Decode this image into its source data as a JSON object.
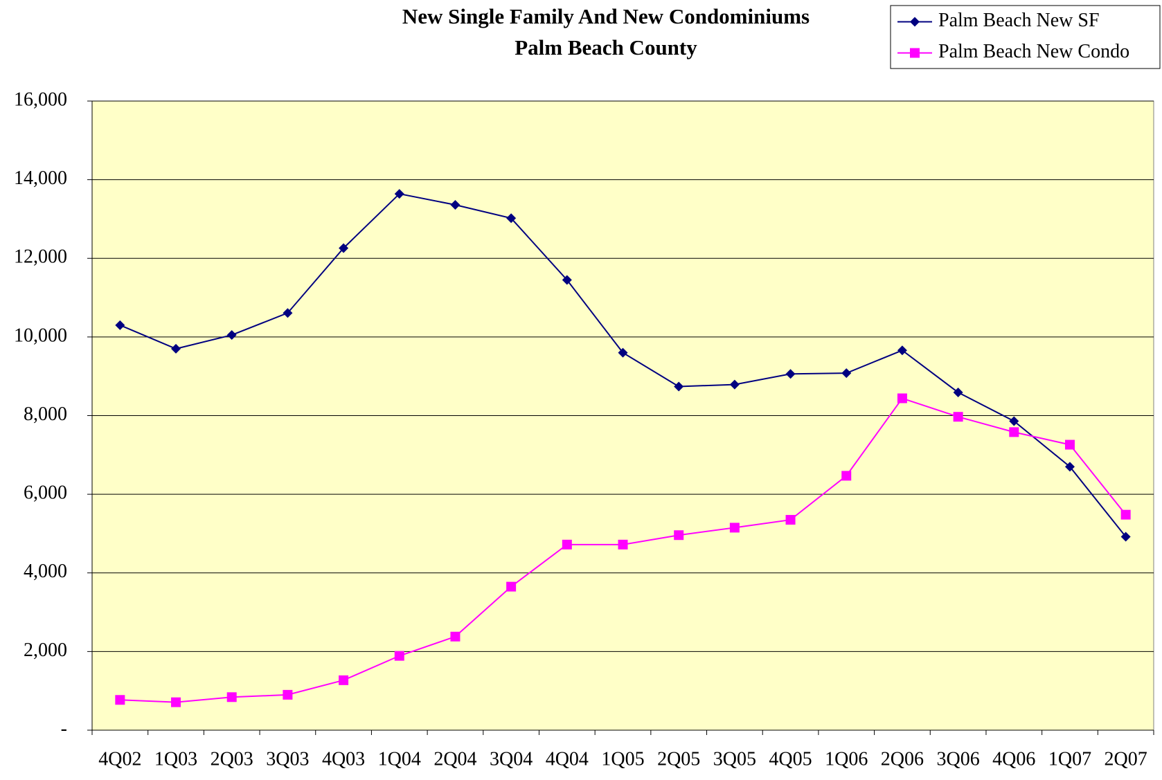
{
  "chart_data": {
    "type": "line",
    "title": "New Single Family And New Condominiums",
    "subtitle": "Palm Beach County",
    "categories": [
      "4Q02",
      "1Q03",
      "2Q03",
      "3Q03",
      "4Q03",
      "1Q04",
      "2Q04",
      "3Q04",
      "4Q04",
      "1Q05",
      "2Q05",
      "3Q05",
      "4Q05",
      "1Q06",
      "2Q06",
      "3Q06",
      "4Q06",
      "1Q07",
      "2Q07"
    ],
    "series": [
      {
        "name": "Palm Beach New SF",
        "color": "#000080",
        "marker": "diamond",
        "values": [
          10300,
          9700,
          10050,
          10610,
          12260,
          13640,
          13360,
          13020,
          11450,
          9600,
          8740,
          8790,
          9060,
          9080,
          9660,
          8590,
          7860,
          6700,
          4920
        ]
      },
      {
        "name": "Palm Beach New Condo",
        "color": "#ff00ff",
        "marker": "square",
        "values": [
          770,
          710,
          840,
          900,
          1270,
          1890,
          2380,
          3650,
          4720,
          4720,
          4960,
          5150,
          5350,
          6470,
          8440,
          7970,
          7580,
          7260,
          5480
        ]
      }
    ],
    "ylim": [
      0,
      16000
    ],
    "yticks": [
      {
        "value": 0,
        "label": "-"
      },
      {
        "value": 2000,
        "label": "2,000"
      },
      {
        "value": 4000,
        "label": "4,000"
      },
      {
        "value": 6000,
        "label": "6,000"
      },
      {
        "value": 8000,
        "label": "8,000"
      },
      {
        "value": 10000,
        "label": "10,000"
      },
      {
        "value": 12000,
        "label": "12,000"
      },
      {
        "value": 14000,
        "label": "14,000"
      },
      {
        "value": 16000,
        "label": "16,000"
      }
    ],
    "grid": true,
    "legend": "top-right",
    "plot_background": "#ffffc8"
  }
}
